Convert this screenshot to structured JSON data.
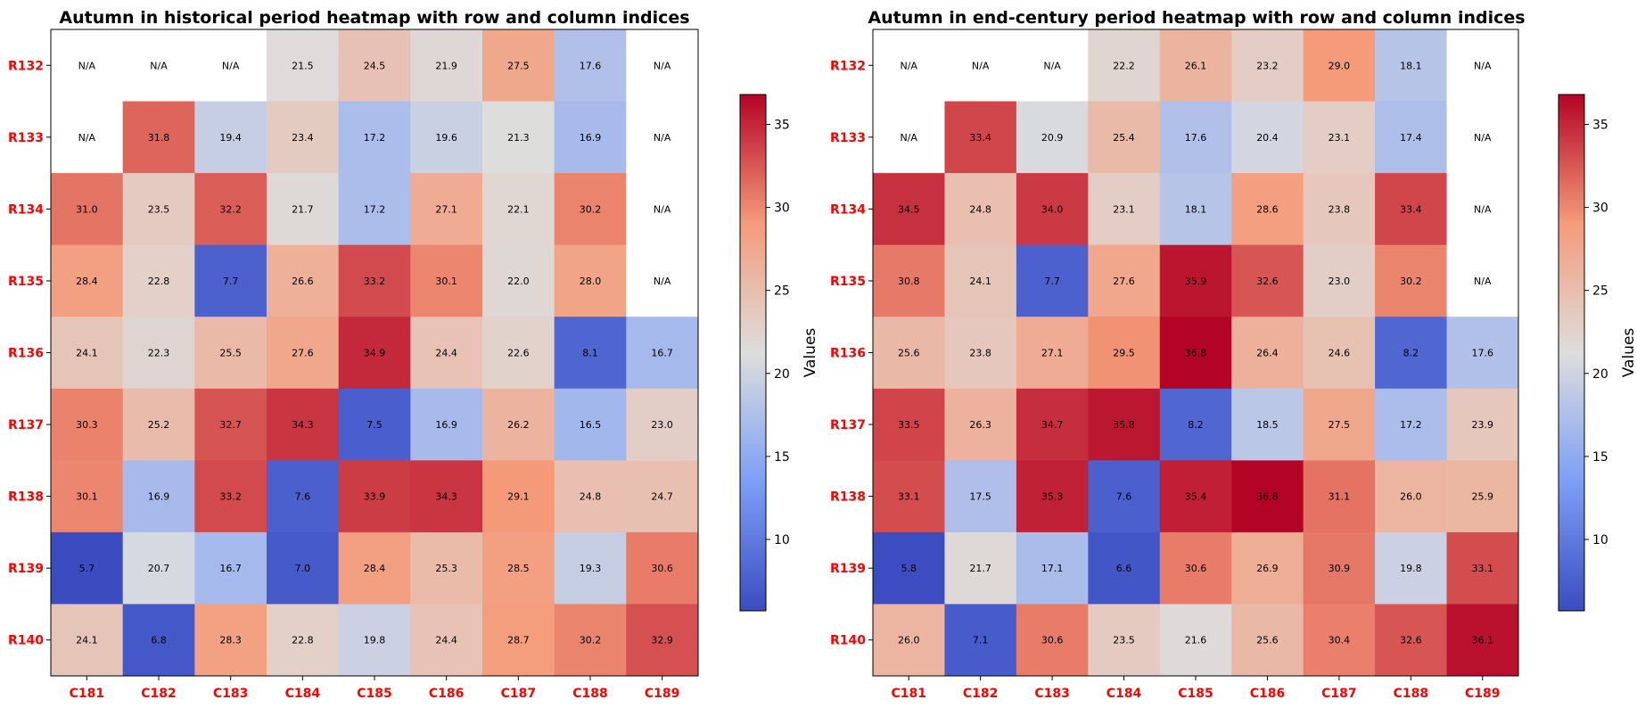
{
  "chart_data": [
    {
      "type": "heatmap",
      "title": "Autumn in historical period heatmap with row and column indices",
      "rows": [
        "R132",
        "R133",
        "R134",
        "R135",
        "R136",
        "R137",
        "R138",
        "R139",
        "R140"
      ],
      "columns": [
        "C181",
        "C182",
        "C183",
        "C184",
        "C185",
        "C186",
        "C187",
        "C188",
        "C189"
      ],
      "values": [
        [
          null,
          null,
          null,
          21.5,
          24.5,
          21.9,
          27.5,
          17.6,
          null
        ],
        [
          null,
          31.8,
          19.4,
          23.4,
          17.2,
          19.6,
          21.3,
          16.9,
          null
        ],
        [
          31.0,
          23.5,
          32.2,
          21.7,
          17.2,
          27.1,
          22.1,
          30.2,
          null
        ],
        [
          28.4,
          22.8,
          7.7,
          26.6,
          33.2,
          30.1,
          22.0,
          28.0,
          null
        ],
        [
          24.1,
          22.3,
          25.5,
          27.6,
          34.9,
          24.4,
          22.6,
          8.1,
          16.7
        ],
        [
          30.3,
          25.2,
          32.7,
          34.3,
          7.5,
          16.9,
          26.2,
          16.5,
          23.0
        ],
        [
          30.1,
          16.9,
          33.2,
          7.6,
          33.9,
          34.3,
          29.1,
          24.8,
          24.7
        ],
        [
          5.7,
          20.7,
          16.7,
          7.0,
          28.4,
          25.3,
          28.5,
          19.3,
          30.6
        ],
        [
          24.1,
          6.8,
          28.3,
          22.8,
          19.8,
          24.4,
          28.7,
          30.2,
          32.9
        ]
      ],
      "missing_label": "N/A",
      "colormap": "coolwarm",
      "value_range": [
        5.7,
        36.8
      ],
      "colorbar": {
        "label": "Values",
        "ticks": [
          10,
          15,
          20,
          25,
          30,
          35
        ]
      }
    },
    {
      "type": "heatmap",
      "title": "Autumn in end-century period heatmap with row and column indices",
      "rows": [
        "R132",
        "R133",
        "R134",
        "R135",
        "R136",
        "R137",
        "R138",
        "R139",
        "R140"
      ],
      "columns": [
        "C181",
        "C182",
        "C183",
        "C184",
        "C185",
        "C186",
        "C187",
        "C188",
        "C189"
      ],
      "values": [
        [
          null,
          null,
          null,
          22.2,
          26.1,
          23.2,
          29.0,
          18.1,
          null
        ],
        [
          null,
          33.4,
          20.9,
          25.4,
          17.6,
          20.4,
          23.1,
          17.4,
          null
        ],
        [
          34.5,
          24.8,
          34.0,
          23.1,
          18.1,
          28.6,
          23.8,
          33.4,
          null
        ],
        [
          30.8,
          24.1,
          7.7,
          27.6,
          35.9,
          32.6,
          23.0,
          30.2,
          null
        ],
        [
          25.6,
          23.8,
          27.1,
          29.5,
          36.8,
          26.4,
          24.6,
          8.2,
          17.6
        ],
        [
          33.5,
          26.3,
          34.7,
          35.8,
          8.2,
          18.5,
          27.5,
          17.2,
          23.9
        ],
        [
          33.1,
          17.5,
          35.3,
          7.6,
          35.4,
          36.8,
          31.1,
          26.0,
          25.9
        ],
        [
          5.8,
          21.7,
          17.1,
          6.6,
          30.6,
          26.9,
          30.9,
          19.8,
          33.1
        ],
        [
          26.0,
          7.1,
          30.6,
          23.5,
          21.6,
          25.6,
          30.4,
          32.6,
          36.1
        ]
      ],
      "missing_label": "N/A",
      "colormap": "coolwarm",
      "value_range": [
        5.7,
        36.8
      ],
      "colorbar": {
        "label": "Values",
        "ticks": [
          10,
          15,
          20,
          25,
          30,
          35
        ]
      }
    }
  ]
}
